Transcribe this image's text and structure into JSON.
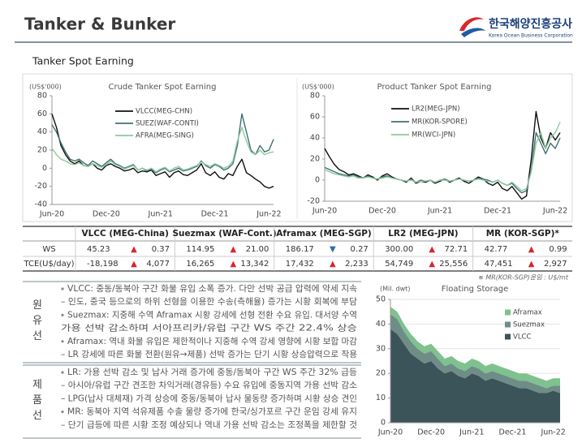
{
  "header": {
    "title": "Tanker & Bunker",
    "logo_name": "한국해양진흥공사",
    "logo_subtitle": "Korea Ocean Business Corporation"
  },
  "section_title": "Tanker Spot Earning",
  "chart_data": [
    {
      "type": "line",
      "title": "Crude Tanker Spot Earning",
      "unit": "(US$'000)",
      "categories": [
        "Jun-20",
        null,
        null,
        null,
        null,
        null,
        null,
        null,
        null,
        null,
        null,
        null,
        "Dec-20",
        null,
        null,
        null,
        null,
        null,
        null,
        null,
        null,
        null,
        null,
        null,
        "Jun-21",
        null,
        null,
        null,
        null,
        null,
        null,
        null,
        null,
        null,
        null,
        null,
        "Dec-21",
        null,
        null,
        null,
        null,
        null,
        null,
        null,
        null,
        null,
        null,
        null,
        "Jun-22",
        null
      ],
      "ylim": [
        -40,
        80
      ],
      "yticks": [
        -40,
        -20,
        0,
        20,
        40,
        60,
        80
      ],
      "series": [
        {
          "name": "VLCC(MEG-CHN)",
          "color": "#111111",
          "values": [
            60,
            45,
            25,
            15,
            8,
            5,
            8,
            3,
            2,
            5,
            0,
            -2,
            3,
            5,
            2,
            0,
            -3,
            -2,
            0,
            -5,
            -3,
            -4,
            -2,
            -8,
            -6,
            -4,
            -10,
            -5,
            -3,
            -7,
            -8,
            -5,
            -2,
            5,
            -5,
            -8,
            -4,
            -10,
            -12,
            -6,
            -8,
            2,
            10,
            -5,
            -8,
            -12,
            -15,
            -20,
            -22,
            -20
          ]
        },
        {
          "name": "SUEZ(WAF-CONTI)",
          "color": "#3f6f73",
          "values": [
            48,
            40,
            28,
            18,
            10,
            8,
            10,
            6,
            3,
            8,
            5,
            2,
            6,
            10,
            5,
            3,
            0,
            2,
            4,
            -2,
            0,
            -3,
            -1,
            -5,
            -2,
            0,
            -4,
            -2,
            0,
            -3,
            -2,
            0,
            2,
            8,
            3,
            0,
            4,
            2,
            -2,
            0,
            5,
            25,
            60,
            40,
            20,
            15,
            25,
            18,
            20,
            32
          ]
        },
        {
          "name": "AFRA(MEG-SING)",
          "color": "#8cc9a0",
          "values": [
            22,
            15,
            10,
            8,
            5,
            4,
            6,
            3,
            2,
            5,
            3,
            1,
            4,
            8,
            4,
            2,
            -1,
            1,
            3,
            -2,
            0,
            -2,
            0,
            -4,
            -1,
            1,
            -3,
            0,
            2,
            -2,
            -1,
            1,
            3,
            7,
            4,
            2,
            5,
            3,
            0,
            2,
            8,
            30,
            45,
            30,
            18,
            15,
            20,
            15,
            17,
            18
          ]
        }
      ]
    },
    {
      "type": "line",
      "title": "Product Tanker Spot Earning",
      "unit": "(US$'000)",
      "categories": [
        "Jun-20",
        null,
        null,
        null,
        null,
        null,
        null,
        null,
        null,
        null,
        null,
        null,
        "Dec-20",
        null,
        null,
        null,
        null,
        null,
        null,
        null,
        null,
        null,
        null,
        null,
        "Jun-21",
        null,
        null,
        null,
        null,
        null,
        null,
        null,
        null,
        null,
        null,
        null,
        "Dec-21",
        null,
        null,
        null,
        null,
        null,
        null,
        null,
        null,
        null,
        null,
        null,
        "Jun-22",
        null
      ],
      "ylim": [
        -20,
        80
      ],
      "yticks": [
        -20,
        0,
        20,
        40,
        60,
        80
      ],
      "series": [
        {
          "name": "LR2(MEG-JPN)",
          "color": "#111111",
          "values": [
            30,
            22,
            15,
            10,
            8,
            5,
            6,
            4,
            2,
            5,
            3,
            0,
            4,
            6,
            3,
            1,
            0,
            -2,
            2,
            -3,
            -1,
            -2,
            0,
            -3,
            -1,
            1,
            -2,
            0,
            2,
            -1,
            -3,
            0,
            3,
            1,
            -3,
            -5,
            -2,
            -8,
            -10,
            -6,
            -12,
            -18,
            -15,
            20,
            65,
            40,
            30,
            45,
            38,
            45
          ]
        },
        {
          "name": "MR(KOR-SPORE)",
          "color": "#3f6f73",
          "values": [
            12,
            10,
            8,
            6,
            5,
            4,
            5,
            3,
            2,
            4,
            2,
            1,
            3,
            4,
            2,
            1,
            0,
            -1,
            1,
            -2,
            0,
            -1,
            0,
            -2,
            0,
            1,
            -1,
            0,
            1,
            0,
            -1,
            0,
            2,
            1,
            0,
            -2,
            0,
            -3,
            -5,
            -3,
            -8,
            -12,
            -10,
            10,
            45,
            35,
            25,
            35,
            30,
            40
          ]
        },
        {
          "name": "MR(WCI-JPN)",
          "color": "#8cc9a0",
          "values": [
            10,
            8,
            6,
            5,
            4,
            3,
            4,
            2,
            2,
            3,
            2,
            1,
            2,
            3,
            2,
            1,
            0,
            -1,
            0,
            -2,
            -1,
            -1,
            0,
            -2,
            0,
            0,
            -1,
            0,
            1,
            0,
            -1,
            0,
            1,
            0,
            -1,
            -2,
            0,
            -3,
            -5,
            -2,
            -6,
            -10,
            -8,
            8,
            35,
            45,
            30,
            40,
            45,
            55
          ]
        }
      ]
    },
    {
      "type": "stacked_area",
      "title": "Floating Storage",
      "unit": "(Mil. dwt)",
      "categories": [
        "Jun-20",
        null,
        null,
        null,
        null,
        null,
        "Dec-20",
        null,
        null,
        null,
        null,
        null,
        "Jun-21",
        null,
        null,
        null,
        null,
        null,
        "Dec-21",
        null,
        null,
        null,
        null,
        null,
        "Jun-22",
        null
      ],
      "ylim": [
        0,
        50
      ],
      "yticks": [
        0,
        10,
        20,
        30,
        40,
        50
      ],
      "series": [
        {
          "name": "VLCC",
          "color": "#3b5459",
          "values": [
            38,
            36,
            32,
            28,
            26,
            24,
            25,
            22,
            20,
            21,
            19,
            18,
            20,
            19,
            17,
            18,
            17,
            16,
            15,
            14,
            14,
            13,
            12,
            12,
            13,
            12
          ]
        },
        {
          "name": "Suezmax",
          "color": "#6f8d87",
          "values": [
            6,
            6,
            5,
            5,
            4,
            4,
            4,
            4,
            3,
            3,
            3,
            3,
            3,
            3,
            3,
            3,
            3,
            3,
            3,
            3,
            3,
            3,
            3,
            2,
            2,
            3
          ]
        },
        {
          "name": "Aframax",
          "color": "#7fc18f",
          "values": [
            3,
            3,
            3,
            3,
            3,
            3,
            3,
            3,
            3,
            3,
            3,
            3,
            3,
            3,
            3,
            3,
            3,
            3,
            3,
            3,
            3,
            3,
            3,
            3,
            3,
            3
          ]
        }
      ]
    }
  ],
  "table": {
    "columns": [
      "VLCC (MEG-China)",
      "Suezmax (WAF-Cont.)",
      "Aframax (MEG-SGP)",
      "LR2 (MEG-JPN)",
      "MR (KOR-SGP)*"
    ],
    "rows": [
      {
        "label": "WS",
        "cells": [
          {
            "value": "45.23",
            "arrow": "▲",
            "change": "0.37",
            "arrow_color": "#d7262b"
          },
          {
            "value": "114.95",
            "arrow": "▲",
            "change": "21.00",
            "arrow_color": "#d7262b"
          },
          {
            "value": "186.17",
            "arrow": "▼",
            "change": "0.27",
            "arrow_color": "#2a6db5"
          },
          {
            "value": "300.00",
            "arrow": "▲",
            "change": "72.71",
            "arrow_color": "#d7262b"
          },
          {
            "value": "42.77",
            "arrow": "▲",
            "change": "0.99",
            "arrow_color": "#d7262b"
          }
        ]
      },
      {
        "label": "TCE(U$/day)",
        "cells": [
          {
            "value": "-18,198",
            "arrow": "▲",
            "change": "4,077",
            "arrow_color": "#d7262b"
          },
          {
            "value": "16,265",
            "arrow": "▲",
            "change": "13,342",
            "arrow_color": "#d7262b"
          },
          {
            "value": "17,432",
            "arrow": "▲",
            "change": "2,233",
            "arrow_color": "#d7262b"
          },
          {
            "value": "54,749",
            "arrow": "▲",
            "change": "25,556",
            "arrow_color": "#d7262b"
          },
          {
            "value": "47,451",
            "arrow": "▲",
            "change": "2,927",
            "arrow_color": "#d7262b"
          }
        ]
      }
    ]
  },
  "table_note": "※ MR(KOR-SGP)운임 : U$/mt",
  "commentary": [
    {
      "label": "원유선",
      "lines": [
        {
          "text": "VLCC: 중동/동북아 구간 화물 유입 소폭 증가. 다만 선박 공급 압력에 약세 지속",
          "bullet": true
        },
        {
          "text": "– 인도, 중국 등으로의 하위 선형을 이용한 수송(측해율) 증가는 시황 회복에 부담",
          "bullet": false
        },
        {
          "text": "Suezmax: 지중해 수역 Aframax 시황 강세에 선형 전환 수요 유입. 대서양 수역",
          "bullet": true
        },
        {
          "text": "가용 선박 감소하며 서아프리카/유럽 구간 WS 주간 22.4% 상승",
          "bullet": false
        },
        {
          "text": "Aframax: 역내 화물 유입은 제한적이나 지중해 수역 강세 영향에 시황 보합 마감",
          "bullet": true
        },
        {
          "text": "– LR 강세에 따른 화물 전환(원유→제품) 선박 증가는 단기 시황 상승압력으로 작용",
          "bullet": false
        }
      ]
    },
    {
      "label": "제품선",
      "lines": [
        {
          "text": "LR: 가용 선박 감소 및 납사 거래 증가에 중동/동북아 구간 WS 주간 32% 급등",
          "bullet": true
        },
        {
          "text": "– 아시아/유럽 구간 견조한 차익거래(경유등) 수요 유입에 중동지역 가용 선박 감소",
          "bullet": false
        },
        {
          "text": "– LPG(납사 대체재) 가격 상승에 중동/동북아 납사 물동량 증가하며 시황 상승 견인",
          "bullet": false
        },
        {
          "text": "MR: 동북아 지역 석유제품 수출 물량 증가에 한국/싱가포르 구간 운임 강세 유지",
          "bullet": true
        },
        {
          "text": "– 단기 급등에 따른 시황 조정 예상되나 역내 가용 선박 감소는 조정폭을 제한할 것",
          "bullet": false
        }
      ]
    }
  ]
}
